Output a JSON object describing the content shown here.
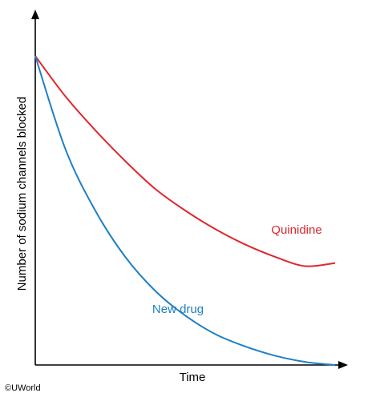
{
  "chart_data": {
    "type": "line",
    "xlabel": "Time",
    "ylabel": "Number of sodium channels blocked",
    "xlim": [
      0,
      1
    ],
    "ylim": [
      0,
      1
    ],
    "x_ticks": [],
    "y_ticks": [],
    "grid": false,
    "series": [
      {
        "name": "Quinidine",
        "color": "#e0262e",
        "x": [
          0,
          0.1,
          0.2,
          0.3,
          0.4,
          0.5,
          0.6,
          0.7,
          0.8,
          0.9,
          1.0
        ],
        "y": [
          1.0,
          0.87,
          0.76,
          0.66,
          0.57,
          0.5,
          0.44,
          0.39,
          0.35,
          0.32,
          0.33
        ]
      },
      {
        "name": "New drug",
        "color": "#1f7fc4",
        "x": [
          0,
          0.1,
          0.2,
          0.3,
          0.4,
          0.5,
          0.6,
          0.7,
          0.8,
          0.9,
          1.0
        ],
        "y": [
          1.0,
          0.7,
          0.5,
          0.35,
          0.24,
          0.16,
          0.1,
          0.06,
          0.03,
          0.01,
          0.0
        ]
      }
    ]
  },
  "credit": "©UWorld"
}
